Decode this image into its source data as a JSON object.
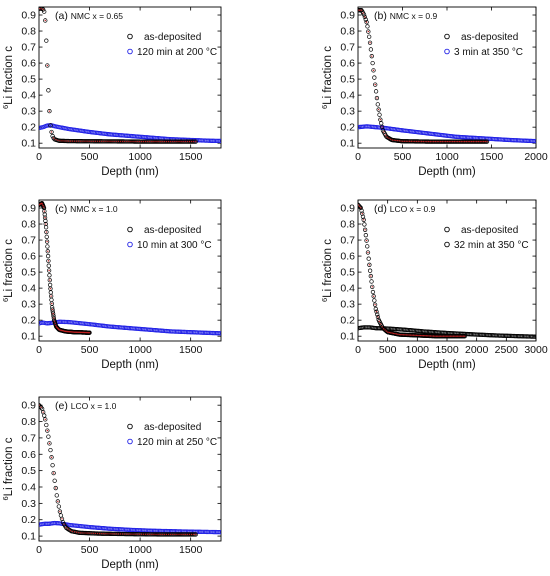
{
  "chart_data": [
    {
      "type": "scatter",
      "panel": "(a)",
      "material": "NMC",
      "composition": "x = 0.65",
      "xlabel": "Depth (nm)",
      "ylabel_sup": "6",
      "ylabel_main": "Li fraction c",
      "xlim": [
        0,
        1800
      ],
      "ylim": [
        0.07,
        0.95
      ],
      "xticks": [
        0,
        500,
        1000,
        1500
      ],
      "yticks": [
        0.1,
        0.2,
        0.3,
        0.4,
        0.5,
        0.6,
        0.7,
        0.8,
        0.9
      ],
      "legend_position": "top-right",
      "series": [
        {
          "name": "as-deposited",
          "color": "#000000",
          "points": [
            [
              0,
              0.94
            ],
            [
              30,
              0.94
            ],
            [
              50,
              0.93
            ],
            [
              65,
              0.85
            ],
            [
              75,
              0.7
            ],
            [
              85,
              0.55
            ],
            [
              95,
              0.4
            ],
            [
              105,
              0.28
            ],
            [
              115,
              0.2
            ],
            [
              130,
              0.15
            ],
            [
              150,
              0.125
            ],
            [
              200,
              0.115
            ],
            [
              300,
              0.113
            ],
            [
              500,
              0.112
            ],
            [
              800,
              0.111
            ],
            [
              1000,
              0.11
            ],
            [
              1200,
              0.11
            ],
            [
              1400,
              0.11
            ],
            [
              1550,
              0.11
            ]
          ]
        },
        {
          "name": "120 min at 200 °C",
          "color": "#1f1fe6",
          "points": [
            [
              0,
              0.195
            ],
            [
              40,
              0.2
            ],
            [
              80,
              0.21
            ],
            [
              120,
              0.212
            ],
            [
              160,
              0.205
            ],
            [
              200,
              0.2
            ],
            [
              300,
              0.188
            ],
            [
              500,
              0.17
            ],
            [
              700,
              0.155
            ],
            [
              900,
              0.145
            ],
            [
              1100,
              0.135
            ],
            [
              1300,
              0.125
            ],
            [
              1500,
              0.12
            ],
            [
              1700,
              0.115
            ],
            [
              1800,
              0.114
            ]
          ]
        }
      ]
    },
    {
      "type": "scatter",
      "panel": "(b)",
      "material": "NMC",
      "composition": "x = 0.9",
      "xlabel": "Depth (nm)",
      "ylabel_sup": "6",
      "ylabel_main": "Li fraction c",
      "xlim": [
        0,
        2000
      ],
      "ylim": [
        0.07,
        0.95
      ],
      "xticks": [
        0,
        500,
        1000,
        1500,
        2000
      ],
      "yticks": [
        0.1,
        0.2,
        0.3,
        0.4,
        0.5,
        0.6,
        0.7,
        0.8,
        0.9
      ],
      "legend_position": "top-right",
      "series": [
        {
          "name": "as-deposited",
          "color": "#000000",
          "points": [
            [
              0,
              0.93
            ],
            [
              40,
              0.93
            ],
            [
              70,
              0.9
            ],
            [
              100,
              0.85
            ],
            [
              130,
              0.75
            ],
            [
              160,
              0.62
            ],
            [
              190,
              0.48
            ],
            [
              220,
              0.35
            ],
            [
              250,
              0.25
            ],
            [
              280,
              0.18
            ],
            [
              320,
              0.14
            ],
            [
              380,
              0.12
            ],
            [
              500,
              0.112
            ],
            [
              800,
              0.11
            ],
            [
              1100,
              0.11
            ],
            [
              1300,
              0.11
            ],
            [
              1450,
              0.11
            ]
          ]
        },
        {
          "name": "3 min at 350 °C",
          "color": "#1f1fe6",
          "points": [
            [
              0,
              0.2
            ],
            [
              100,
              0.205
            ],
            [
              200,
              0.2
            ],
            [
              300,
              0.195
            ],
            [
              500,
              0.18
            ],
            [
              800,
              0.16
            ],
            [
              1100,
              0.14
            ],
            [
              1400,
              0.13
            ],
            [
              1700,
              0.12
            ],
            [
              1900,
              0.115
            ],
            [
              2000,
              0.113
            ]
          ]
        }
      ]
    },
    {
      "type": "scatter",
      "panel": "(c)",
      "material": "NMC",
      "composition": "x = 1.0",
      "xlabel": "Depth (nm)",
      "ylabel_sup": "6",
      "ylabel_main": "Li fraction c",
      "xlim": [
        0,
        1800
      ],
      "ylim": [
        0.07,
        0.95
      ],
      "xticks": [
        0,
        500,
        1000,
        1500
      ],
      "yticks": [
        0.1,
        0.2,
        0.3,
        0.4,
        0.5,
        0.6,
        0.7,
        0.8,
        0.9
      ],
      "legend_position": "top-right",
      "series": [
        {
          "name": "as-deposited",
          "color": "#000000",
          "points": [
            [
              0,
              0.92
            ],
            [
              30,
              0.93
            ],
            [
              50,
              0.9
            ],
            [
              70,
              0.78
            ],
            [
              90,
              0.6
            ],
            [
              110,
              0.42
            ],
            [
              130,
              0.28
            ],
            [
              150,
              0.2
            ],
            [
              170,
              0.16
            ],
            [
              200,
              0.14
            ],
            [
              260,
              0.13
            ],
            [
              350,
              0.125
            ],
            [
              450,
              0.123
            ],
            [
              500,
              0.122
            ]
          ]
        },
        {
          "name": "10 min at 300 °C",
          "color": "#1f1fe6",
          "points": [
            [
              0,
              0.18
            ],
            [
              40,
              0.185
            ],
            [
              80,
              0.18
            ],
            [
              150,
              0.185
            ],
            [
              200,
              0.19
            ],
            [
              300,
              0.188
            ],
            [
              500,
              0.175
            ],
            [
              700,
              0.16
            ],
            [
              900,
              0.15
            ],
            [
              1100,
              0.14
            ],
            [
              1300,
              0.13
            ],
            [
              1500,
              0.125
            ],
            [
              1700,
              0.12
            ],
            [
              1800,
              0.118
            ]
          ]
        }
      ]
    },
    {
      "type": "scatter",
      "panel": "(d)",
      "material": "LCO",
      "composition": "x = 0.9",
      "xlabel": "Depth (nm)",
      "ylabel_sup": "6",
      "ylabel_main": "Li fraction c",
      "xlim": [
        0,
        3000
      ],
      "ylim": [
        0.07,
        0.95
      ],
      "xticks": [
        0,
        500,
        1000,
        1500,
        2000,
        2500,
        3000
      ],
      "yticks": [
        0.1,
        0.2,
        0.3,
        0.4,
        0.5,
        0.6,
        0.7,
        0.8,
        0.9
      ],
      "legend_position": "top-right",
      "series": [
        {
          "name": "as-deposited",
          "color": "#000000",
          "points": [
            [
              0,
              0.92
            ],
            [
              50,
              0.9
            ],
            [
              100,
              0.82
            ],
            [
              150,
              0.68
            ],
            [
              200,
              0.52
            ],
            [
              250,
              0.38
            ],
            [
              300,
              0.27
            ],
            [
              350,
              0.2
            ],
            [
              420,
              0.15
            ],
            [
              500,
              0.125
            ],
            [
              700,
              0.11
            ],
            [
              1000,
              0.105
            ],
            [
              1300,
              0.1
            ],
            [
              1600,
              0.1
            ],
            [
              1800,
              0.1
            ]
          ]
        },
        {
          "name": "32 min at 350 °C",
          "color": "#000000",
          "points": [
            [
              0,
              0.15
            ],
            [
              100,
              0.155
            ],
            [
              200,
              0.155
            ],
            [
              300,
              0.15
            ],
            [
              500,
              0.148
            ],
            [
              800,
              0.14
            ],
            [
              1100,
              0.13
            ],
            [
              1500,
              0.12
            ],
            [
              1900,
              0.112
            ],
            [
              2300,
              0.105
            ],
            [
              2700,
              0.1
            ],
            [
              3000,
              0.097
            ]
          ]
        }
      ]
    },
    {
      "type": "scatter",
      "panel": "(e)",
      "material": "LCO",
      "composition": "x = 1.0",
      "xlabel": "Depth (nm)",
      "ylabel_sup": "6",
      "ylabel_main": "Li fraction c",
      "xlim": [
        0,
        1800
      ],
      "ylim": [
        0.07,
        0.95
      ],
      "xticks": [
        0,
        500,
        1000,
        1500
      ],
      "yticks": [
        0.1,
        0.2,
        0.3,
        0.4,
        0.5,
        0.6,
        0.7,
        0.8,
        0.9
      ],
      "legend_position": "top-right",
      "series": [
        {
          "name": "as-deposited",
          "color": "#000000",
          "points": [
            [
              0,
              0.9
            ],
            [
              30,
              0.88
            ],
            [
              60,
              0.82
            ],
            [
              90,
              0.72
            ],
            [
              120,
              0.6
            ],
            [
              150,
              0.46
            ],
            [
              180,
              0.33
            ],
            [
              210,
              0.24
            ],
            [
              240,
              0.18
            ],
            [
              270,
              0.15
            ],
            [
              320,
              0.13
            ],
            [
              400,
              0.12
            ],
            [
              600,
              0.115
            ],
            [
              900,
              0.112
            ],
            [
              1200,
              0.11
            ],
            [
              1500,
              0.11
            ],
            [
              1550,
              0.11
            ]
          ]
        },
        {
          "name": "120 min at 250 °C",
          "color": "#1f1fe6",
          "points": [
            [
              0,
              0.17
            ],
            [
              50,
              0.175
            ],
            [
              100,
              0.175
            ],
            [
              150,
              0.18
            ],
            [
              200,
              0.178
            ],
            [
              300,
              0.168
            ],
            [
              500,
              0.155
            ],
            [
              700,
              0.145
            ],
            [
              900,
              0.138
            ],
            [
              1100,
              0.133
            ],
            [
              1300,
              0.13
            ],
            [
              1500,
              0.127
            ],
            [
              1700,
              0.125
            ],
            [
              1800,
              0.124
            ]
          ]
        }
      ]
    }
  ]
}
